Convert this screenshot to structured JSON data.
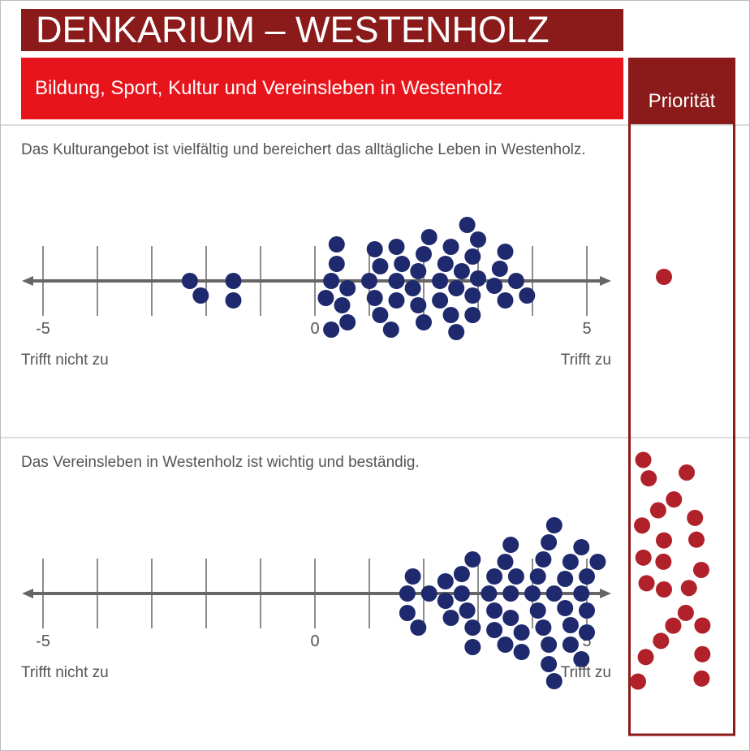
{
  "header": {
    "title": "DENKARIUM – WESTENHOLZ",
    "subtitle": "Bildung, Sport, Kultur und Vereinsleben in Westenholz"
  },
  "priority_label": "Priorität",
  "chart_data": [
    {
      "type": "dot",
      "question": "Das Kulturangebot ist vielfältig und bereichert das alltägliche Leben in Westenholz.",
      "x": [
        -2.3,
        -2.1,
        -1.5,
        -1.5,
        0.3,
        0.6,
        0.4,
        0.2,
        0.5,
        0.4,
        0.6,
        0.3,
        1.0,
        1.1,
        1.2,
        1.1,
        1.2,
        1.5,
        1.5,
        1.6,
        1.5,
        1.4,
        1.8,
        1.9,
        1.9,
        2.0,
        2.0,
        2.1,
        2.3,
        2.3,
        2.4,
        2.5,
        2.5,
        2.6,
        2.6,
        2.7,
        2.9,
        2.9,
        3.0,
        2.9,
        3.0,
        2.8,
        3.3,
        3.4,
        3.5,
        3.5,
        3.7,
        3.9
      ],
      "color": "#1f2a6e",
      "xlim": [
        -5,
        5
      ],
      "xticks": [
        -5,
        -4,
        -3,
        -2,
        -1,
        0,
        1,
        2,
        3,
        4,
        5
      ],
      "xtick_labels": [
        -5,
        0,
        5
      ],
      "left_label": "Trifft nicht zu",
      "right_label": "Trifft zu",
      "priority_count": 1,
      "priority_color": "#b0212a"
    },
    {
      "type": "dot",
      "question": "Das Vereinsleben in Westenholz ist wichtig und beständig.",
      "x": [
        1.7,
        1.7,
        1.8,
        1.9,
        2.1,
        2.4,
        2.4,
        2.5,
        2.7,
        2.7,
        2.8,
        2.9,
        2.9,
        2.9,
        3.2,
        3.3,
        3.3,
        3.3,
        3.5,
        3.5,
        3.6,
        3.6,
        3.6,
        3.7,
        3.8,
        3.8,
        4.0,
        4.1,
        4.1,
        4.2,
        4.2,
        4.3,
        4.3,
        4.3,
        4.4,
        4.4,
        4.4,
        4.6,
        4.6,
        4.7,
        4.7,
        4.7,
        4.9,
        4.9,
        4.9,
        5.0,
        5.0,
        5.0,
        5.2
      ],
      "color": "#1f2a6e",
      "xlim": [
        -5,
        5
      ],
      "xticks": [
        -5,
        -4,
        -3,
        -2,
        -1,
        0,
        1,
        2,
        3,
        4,
        5
      ],
      "xtick_labels": [
        -5,
        0,
        5
      ],
      "left_label": "Trifft nicht zu",
      "right_label": "Trifft zu",
      "priority_count": 23,
      "priority_color": "#b0212a"
    }
  ]
}
